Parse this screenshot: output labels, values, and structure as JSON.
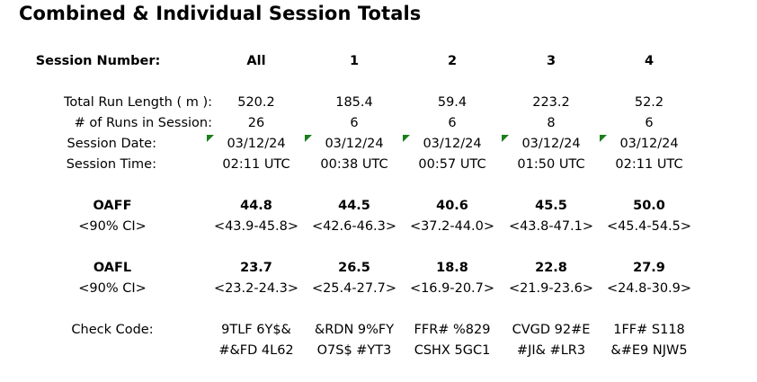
{
  "title": "Combined & Individual Session Totals",
  "header": {
    "label": "Session Number:",
    "columns": [
      "All",
      "1",
      "2",
      "3",
      "4"
    ]
  },
  "rows": {
    "run_length": {
      "label": "Total Run Length ( m ):",
      "values": [
        "520.2",
        "185.4",
        "59.4",
        "223.2",
        "52.2"
      ]
    },
    "num_runs": {
      "label": "# of Runs in Session:",
      "values": [
        "26",
        "6",
        "6",
        "8",
        "6"
      ]
    },
    "session_date": {
      "label": "Session Date:",
      "values": [
        "03/12/24",
        "03/12/24",
        "03/12/24",
        "03/12/24",
        "03/12/24"
      ]
    },
    "session_time": {
      "label": "Session Time:",
      "values": [
        "02:11 UTC",
        "00:38 UTC",
        "00:57 UTC",
        "01:50 UTC",
        "02:11 UTC"
      ]
    },
    "oaff": {
      "label": "OAFF",
      "values": [
        "44.8",
        "44.5",
        "40.6",
        "45.5",
        "50.0"
      ]
    },
    "oaff_ci": {
      "label": "<90% CI>",
      "values": [
        "<43.9-45.8>",
        "<42.6-46.3>",
        "<37.2-44.0>",
        "<43.8-47.1>",
        "<45.4-54.5>"
      ]
    },
    "oafl": {
      "label": "OAFL",
      "values": [
        "23.7",
        "26.5",
        "18.8",
        "22.8",
        "27.9"
      ]
    },
    "oafl_ci": {
      "label": "<90% CI>",
      "values": [
        "<23.2-24.3>",
        "<25.4-27.7>",
        "<16.9-20.7>",
        "<21.9-23.6>",
        "<24.8-30.9>"
      ]
    },
    "check_code_1": {
      "label": "Check Code:",
      "values": [
        "9TLF 6Y$&",
        "&RDN 9%FY",
        "FFR# %829",
        "CVGD 92#E",
        "1FF# S118"
      ]
    },
    "check_code_2": {
      "values": [
        "#&FD 4L62",
        "O7S$ #YT3",
        "CSHX 5GC1",
        "#JI& #LR3",
        "&#E9 NJW5"
      ]
    }
  },
  "colors": {
    "comment_indicator": "#1a7f1a"
  }
}
